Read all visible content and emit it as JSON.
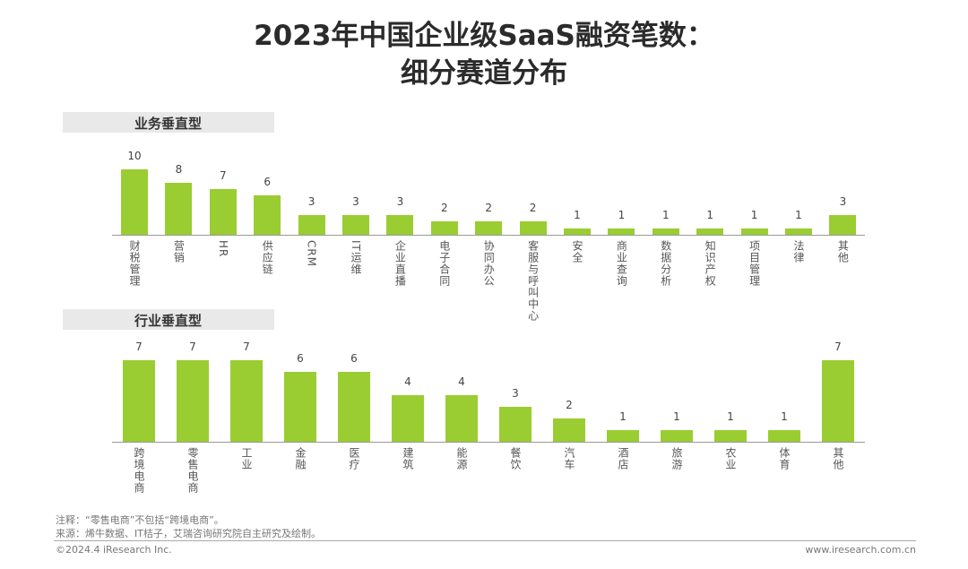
{
  "title_line1": "2023年中国企业级SaaS融资笔数：",
  "title_line2": "细分赛道分布",
  "bar_color": "#9acd32",
  "chart_data": [
    {
      "type": "bar",
      "title": "业务垂直型",
      "categories": [
        "财税管理",
        "营销",
        "HR",
        "供应链",
        "CRM",
        "IT运维",
        "企业直播",
        "电子合同",
        "协同办公",
        "客服与呼叫中心",
        "安全",
        "商业查询",
        "数据分析",
        "知识产权",
        "项目管理",
        "法律",
        "其他"
      ],
      "values": [
        10,
        8,
        7,
        6,
        3,
        3,
        3,
        2,
        2,
        2,
        1,
        1,
        1,
        1,
        1,
        1,
        3
      ]
    },
    {
      "type": "bar",
      "title": "行业垂直型",
      "categories": [
        "跨境电商",
        "零售电商",
        "工业",
        "金融",
        "医疗",
        "建筑",
        "能源",
        "餐饮",
        "汽车",
        "酒店",
        "旅游",
        "农业",
        "体育",
        "其他"
      ],
      "values": [
        7,
        7,
        7,
        6,
        6,
        4,
        4,
        3,
        2,
        1,
        1,
        1,
        1,
        7
      ]
    }
  ],
  "footer": {
    "note": "注释：“零售电商”不包括“跨境电商”。",
    "source": "来源：烯牛数据、IT桔子，艾瑞咨询研究院自主研究及绘制。",
    "copyright": "©2024.4 iResearch Inc.",
    "website": "www.iresearch.com.cn"
  }
}
